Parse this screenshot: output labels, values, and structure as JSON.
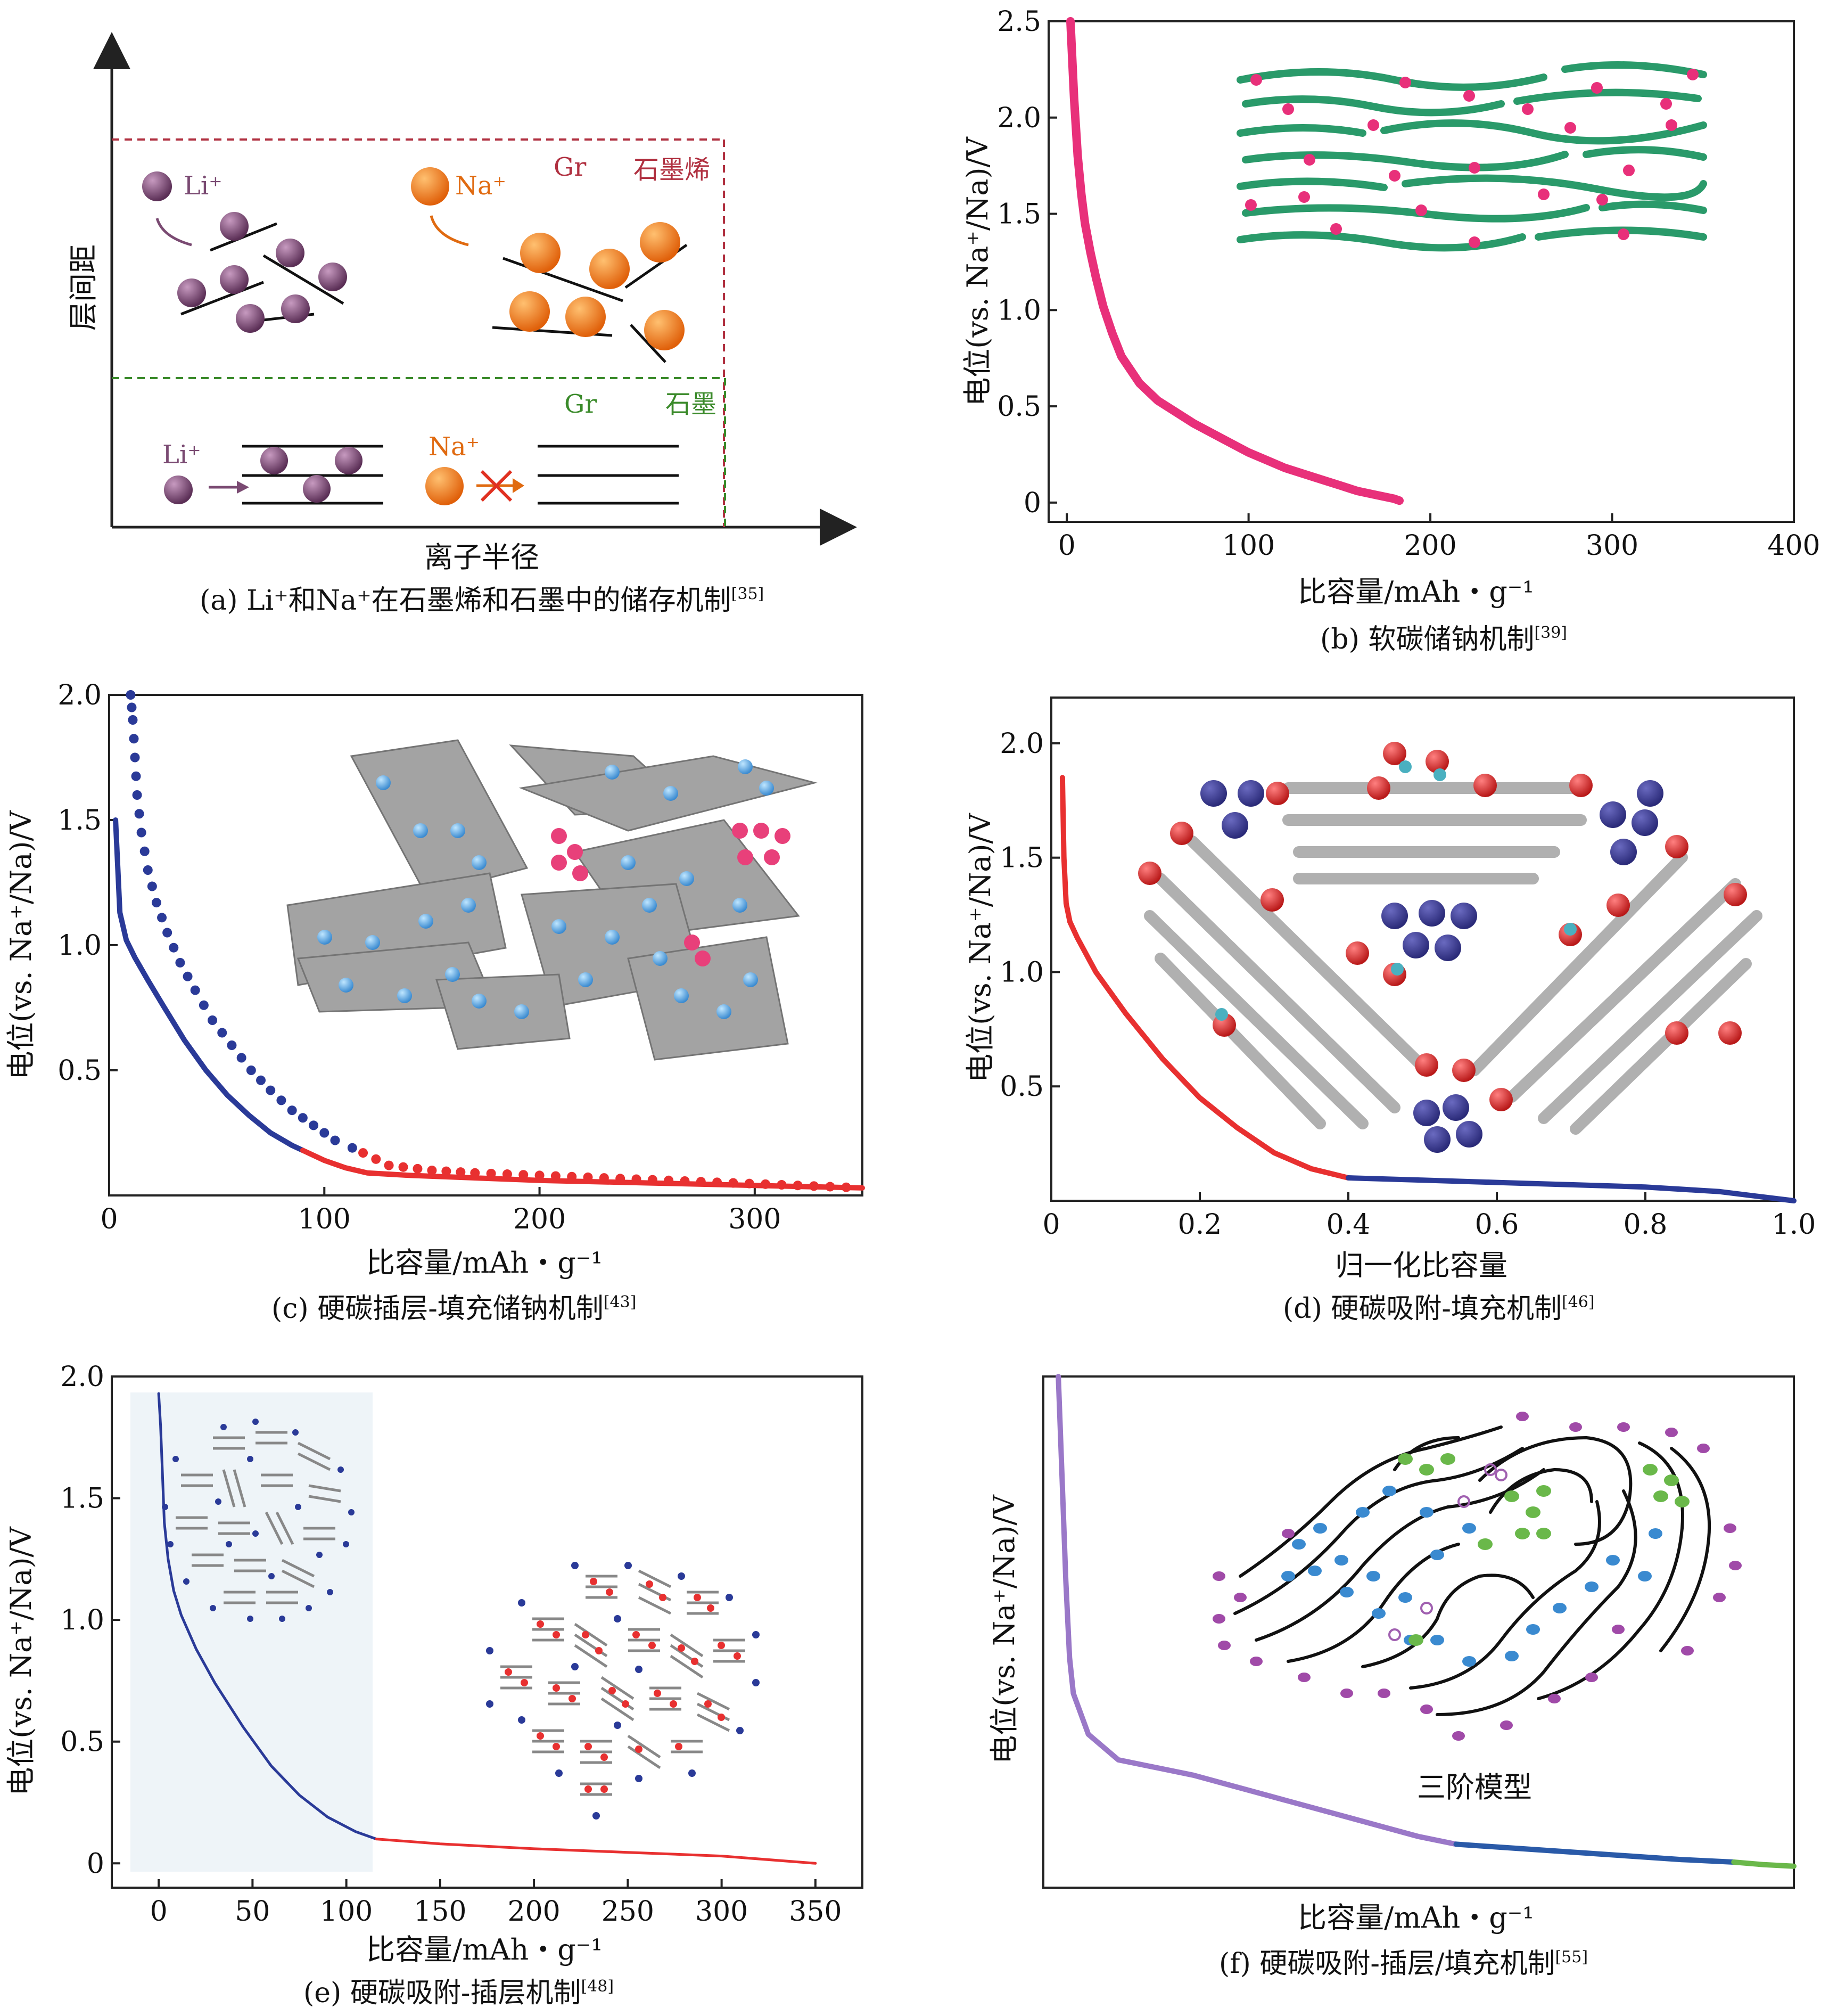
{
  "colors": {
    "li": "#7a4a72",
    "na": "#f07a1e",
    "graphene_line": "#b03040",
    "graphite_line": "#3a8a2a",
    "soft_curve": "#e8307a",
    "sheet_green": "#2a9a6a",
    "blue": "#2a3a98",
    "red": "#e83030",
    "purple": "#9a78c8",
    "green": "#6ab84a"
  },
  "chart_data": [
    {
      "panel": "a",
      "type": "diagram",
      "caption_main": "(a) Li⁺和Na⁺在石墨烯和石墨中的储存机制",
      "ref": "[35]",
      "ylabel": "层间距",
      "xlabel": "离子半径",
      "labels": {
        "li_top": "Li⁺",
        "na_top": "Na⁺",
        "gr_top": "Gr",
        "graphene": "石墨烯",
        "gr_bottom": "Gr",
        "graphite": "石墨",
        "li_bottom": "Li⁺",
        "na_bottom": "Na⁺"
      }
    },
    {
      "panel": "b",
      "type": "line",
      "caption_main": "(b) 软碳储钠机制",
      "ref": "[39]",
      "xlabel": "比容量/mAh・g⁻¹",
      "ylabel": "电位(vs. Na⁺/Na)/V",
      "xlim": [
        -10,
        400
      ],
      "ylim": [
        -0.1,
        2.5
      ],
      "xticks": [
        "0",
        "100",
        "200",
        "300",
        "400"
      ],
      "yticks": [
        "0",
        "0.5",
        "1.0",
        "1.5",
        "2.0",
        "2.5"
      ],
      "series": [
        {
          "name": "sodiation",
          "color": "#e8307a",
          "x": [
            2,
            4,
            6,
            8,
            10,
            13,
            16,
            20,
            25,
            30,
            40,
            50,
            60,
            70,
            80,
            90,
            100,
            110,
            120,
            130,
            140,
            150,
            160,
            170,
            180,
            183
          ],
          "y": [
            2.5,
            2.1,
            1.8,
            1.6,
            1.45,
            1.3,
            1.17,
            1.02,
            0.88,
            0.76,
            0.62,
            0.53,
            0.47,
            0.41,
            0.36,
            0.31,
            0.26,
            0.22,
            0.18,
            0.15,
            0.12,
            0.09,
            0.06,
            0.04,
            0.02,
            0.01
          ]
        }
      ]
    },
    {
      "panel": "c",
      "type": "line",
      "caption_main": "(c) 硬碳插层-填充储钠机制",
      "ref": "[43]",
      "xlabel": "比容量/mAh・g⁻¹",
      "ylabel": "电位(vs. Na⁺/Na)/V",
      "xlim": [
        0,
        350
      ],
      "ylim": [
        0,
        2.0
      ],
      "xticks": [
        "0",
        "100",
        "200",
        "300"
      ],
      "yticks": [
        "0.5",
        "1.0",
        "1.5",
        "2.0"
      ],
      "series": [
        {
          "name": "solid blue",
          "color": "#2a3a98",
          "style": "solid",
          "x": [
            3,
            5,
            8,
            12,
            18,
            25,
            35,
            45,
            55,
            65,
            75,
            85,
            90
          ],
          "y": [
            1.5,
            1.13,
            1.02,
            0.95,
            0.86,
            0.76,
            0.62,
            0.5,
            0.4,
            0.32,
            0.25,
            0.2,
            0.18
          ]
        },
        {
          "name": "solid red",
          "color": "#e83030",
          "style": "solid",
          "x": [
            90,
            100,
            110,
            120,
            140,
            170,
            200,
            250,
            300,
            350
          ],
          "y": [
            0.18,
            0.14,
            0.11,
            0.09,
            0.08,
            0.07,
            0.06,
            0.05,
            0.04,
            0.03
          ]
        },
        {
          "name": "dotted blue",
          "color": "#2a3a98",
          "style": "dotted",
          "x": [
            10,
            11,
            12,
            13,
            15,
            18,
            22,
            27,
            33,
            40,
            48,
            57,
            66,
            75,
            85,
            95,
            105,
            113,
            118
          ],
          "y": [
            2.0,
            1.9,
            1.75,
            1.6,
            1.45,
            1.3,
            1.17,
            1.05,
            0.93,
            0.82,
            0.7,
            0.6,
            0.5,
            0.42,
            0.34,
            0.28,
            0.22,
            0.19,
            0.17
          ]
        },
        {
          "name": "dotted red",
          "color": "#e83030",
          "style": "dotted",
          "x": [
            118,
            130,
            150,
            170,
            200,
            230,
            260,
            290,
            320,
            350
          ],
          "y": [
            0.17,
            0.12,
            0.1,
            0.09,
            0.08,
            0.07,
            0.06,
            0.05,
            0.04,
            0.03
          ]
        }
      ]
    },
    {
      "panel": "d",
      "type": "line",
      "caption_main": "(d) 硬碳吸附-填充机制",
      "ref": "[46]",
      "xlabel": "归一化比容量",
      "ylabel": "电位(vs. Na⁺/Na)/V",
      "xlim": [
        0,
        1.0
      ],
      "ylim": [
        0,
        2.2
      ],
      "xticks": [
        "0",
        "0.2",
        "0.4",
        "0.6",
        "0.8",
        "1.0"
      ],
      "yticks": [
        "0.5",
        "1.0",
        "1.5",
        "2.0"
      ],
      "series": [
        {
          "name": "red",
          "color": "#e83030",
          "x": [
            0.015,
            0.017,
            0.02,
            0.025,
            0.035,
            0.06,
            0.1,
            0.15,
            0.2,
            0.25,
            0.3,
            0.35,
            0.4
          ],
          "y": [
            1.85,
            1.5,
            1.3,
            1.22,
            1.15,
            1.0,
            0.82,
            0.62,
            0.45,
            0.32,
            0.21,
            0.14,
            0.1
          ]
        },
        {
          "name": "blue",
          "color": "#2a3a98",
          "x": [
            0.4,
            0.5,
            0.6,
            0.7,
            0.8,
            0.9,
            0.95,
            1.0
          ],
          "y": [
            0.1,
            0.09,
            0.08,
            0.07,
            0.06,
            0.04,
            0.02,
            0.0
          ]
        }
      ]
    },
    {
      "panel": "e",
      "type": "line",
      "caption_main": "(e) 硬碳吸附-插层机制",
      "ref": "[48]",
      "xlabel": "比容量/mAh・g⁻¹",
      "ylabel": "电位(vs. Na⁺/Na)/V",
      "xlim": [
        -25,
        375
      ],
      "ylim": [
        -0.1,
        2.0
      ],
      "xticks": [
        "0",
        "50",
        "100",
        "150",
        "200",
        "250",
        "300",
        "350"
      ],
      "yticks": [
        "0",
        "0.5",
        "1.0",
        "1.5",
        "2.0"
      ],
      "series": [
        {
          "name": "blue",
          "color": "#2a3a98",
          "x": [
            0,
            1,
            2,
            3,
            5,
            8,
            12,
            20,
            30,
            45,
            60,
            75,
            90,
            105,
            116
          ],
          "y": [
            1.93,
            1.8,
            1.6,
            1.4,
            1.25,
            1.12,
            1.02,
            0.88,
            0.74,
            0.56,
            0.4,
            0.28,
            0.19,
            0.13,
            0.1
          ]
        },
        {
          "name": "red",
          "color": "#e83030",
          "x": [
            116,
            150,
            200,
            250,
            300,
            350
          ],
          "y": [
            0.1,
            0.08,
            0.06,
            0.045,
            0.03,
            0.0
          ]
        }
      ]
    },
    {
      "panel": "f",
      "type": "line",
      "caption_main": "(f) 硬碳吸附-插层/填充机制",
      "ref": "[55]",
      "xlabel": "比容量/mAh・g⁻¹",
      "ylabel": "电位(vs. Na⁺/Na)/V",
      "inset_label": "三阶模型",
      "xlim": [
        0,
        100
      ],
      "ylim": [
        0,
        100
      ],
      "series": [
        {
          "name": "purple",
          "color": "#9a78c8",
          "x": [
            2,
            2.5,
            3,
            3.5,
            4,
            6,
            10,
            15,
            20,
            30,
            40,
            50,
            55
          ],
          "y": [
            100,
            80,
            60,
            45,
            38,
            30,
            25,
            23.5,
            22,
            18,
            14,
            10,
            8.5
          ]
        },
        {
          "name": "blue",
          "color": "#2a5aa8",
          "x": [
            55,
            65,
            75,
            85,
            92
          ],
          "y": [
            8.5,
            7.5,
            6.5,
            5.5,
            5
          ]
        },
        {
          "name": "green",
          "color": "#6ab84a",
          "x": [
            92,
            96,
            100
          ],
          "y": [
            5,
            4.5,
            4.2
          ]
        }
      ]
    }
  ]
}
